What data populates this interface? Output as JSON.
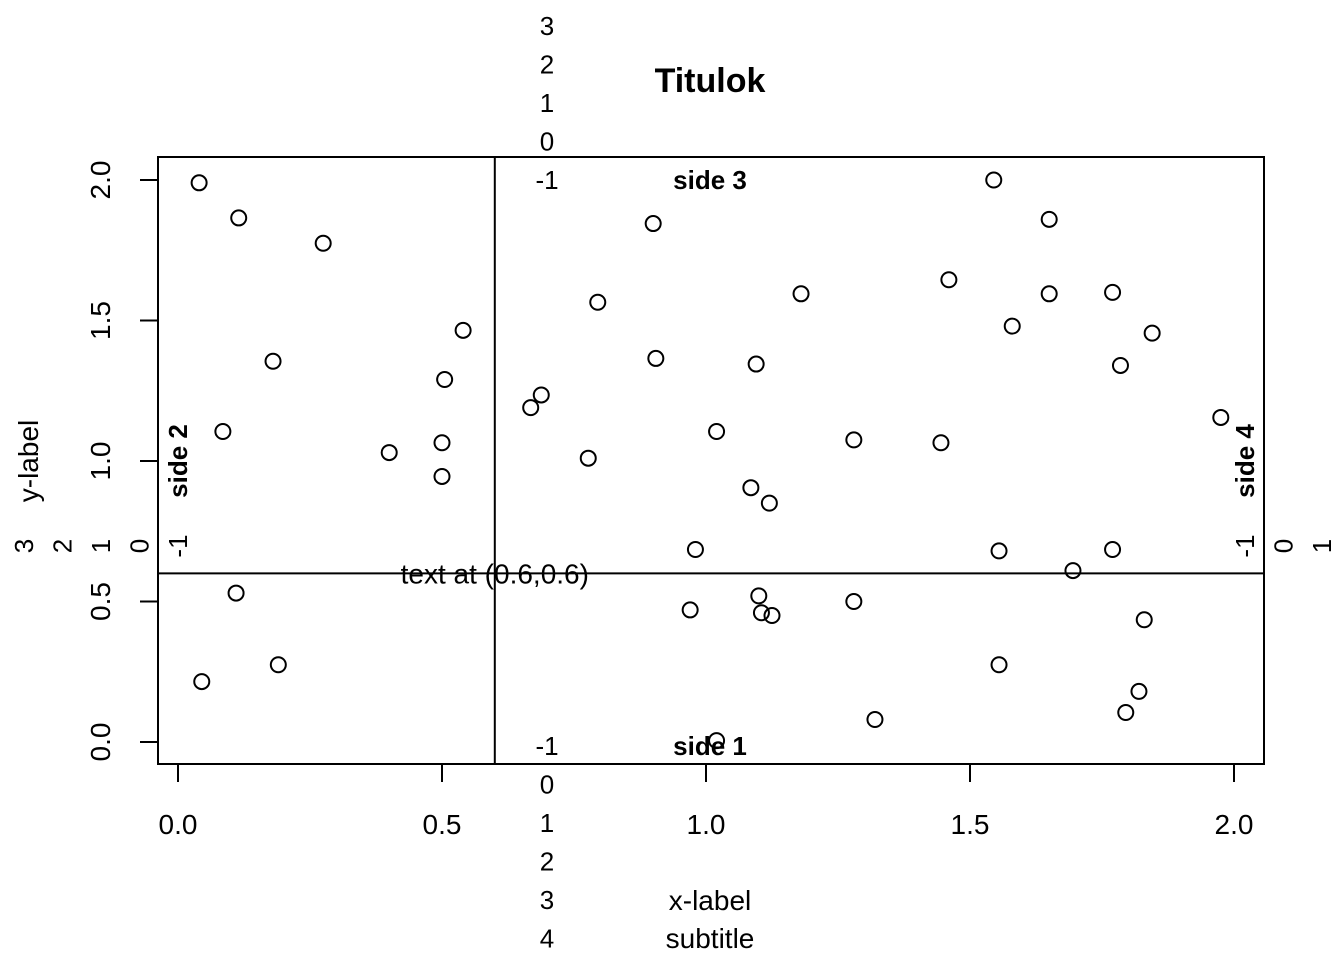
{
  "chart_data": {
    "type": "scatter",
    "title": "Titulok",
    "subtitle": "subtitle",
    "xlabel": "x-label",
    "ylabel": "y-label",
    "xlim": [
      -0.04,
      2.06
    ],
    "ylim": [
      -0.07,
      2.08
    ],
    "x_ticks": [
      0.0,
      0.5,
      1.0,
      1.5,
      2.0
    ],
    "x_tick_labels": [
      "0.0",
      "0.5",
      "1.0",
      "1.5",
      "2.0"
    ],
    "y_ticks": [
      0.0,
      0.5,
      1.0,
      1.5,
      2.0
    ],
    "y_tick_labels": [
      "0.0",
      "0.5",
      "1.0",
      "1.5",
      "2.0"
    ],
    "grid": false,
    "reference_lines": {
      "vertical_x": 0.6,
      "horizontal_y": 0.6
    },
    "annotation": {
      "text": "text at (0.6,0.6)",
      "x": 0.6,
      "y": 0.6
    },
    "side_labels": {
      "side1": "side 1",
      "side2": "side 2",
      "side3": "side 3",
      "side4": "side 4"
    },
    "margin_line_labels": {
      "bottom": [
        "-1",
        "0",
        "1",
        "2",
        "3",
        "4"
      ],
      "top": [
        "-1",
        "0",
        "1",
        "2",
        "3"
      ],
      "left": [
        "-1",
        "0",
        "1",
        "2",
        "3"
      ],
      "right": [
        "-1",
        "0",
        "1"
      ]
    },
    "points": [
      {
        "x": 0.04,
        "y": 1.99
      },
      {
        "x": 0.115,
        "y": 1.865
      },
      {
        "x": 0.275,
        "y": 1.775
      },
      {
        "x": 0.18,
        "y": 1.355
      },
      {
        "x": 0.085,
        "y": 1.105
      },
      {
        "x": 0.4,
        "y": 1.03
      },
      {
        "x": 0.505,
        "y": 1.29
      },
      {
        "x": 0.54,
        "y": 1.465
      },
      {
        "x": 0.5,
        "y": 1.065
      },
      {
        "x": 0.5,
        "y": 0.945
      },
      {
        "x": 0.11,
        "y": 0.53
      },
      {
        "x": 0.19,
        "y": 0.275
      },
      {
        "x": 0.045,
        "y": 0.215
      },
      {
        "x": 0.668,
        "y": 1.19
      },
      {
        "x": 0.688,
        "y": 1.235
      },
      {
        "x": 0.777,
        "y": 1.01
      },
      {
        "x": 0.795,
        "y": 1.565
      },
      {
        "x": 0.9,
        "y": 1.845
      },
      {
        "x": 0.905,
        "y": 1.365
      },
      {
        "x": 0.98,
        "y": 0.685
      },
      {
        "x": 0.97,
        "y": 0.47
      },
      {
        "x": 1.02,
        "y": 1.105
      },
      {
        "x": 1.02,
        "y": 0.005
      },
      {
        "x": 1.085,
        "y": 0.905
      },
      {
        "x": 1.095,
        "y": 1.345
      },
      {
        "x": 1.1,
        "y": 0.52
      },
      {
        "x": 1.105,
        "y": 0.46
      },
      {
        "x": 1.12,
        "y": 0.85
      },
      {
        "x": 1.125,
        "y": 0.45
      },
      {
        "x": 1.18,
        "y": 1.595
      },
      {
        "x": 1.28,
        "y": 1.075
      },
      {
        "x": 1.28,
        "y": 0.5
      },
      {
        "x": 1.32,
        "y": 0.08
      },
      {
        "x": 1.445,
        "y": 1.065
      },
      {
        "x": 1.46,
        "y": 1.645
      },
      {
        "x": 1.545,
        "y": 2.0
      },
      {
        "x": 1.555,
        "y": 0.68
      },
      {
        "x": 1.555,
        "y": 0.275
      },
      {
        "x": 1.58,
        "y": 1.48
      },
      {
        "x": 1.65,
        "y": 1.86
      },
      {
        "x": 1.65,
        "y": 1.595
      },
      {
        "x": 1.695,
        "y": 0.61
      },
      {
        "x": 1.77,
        "y": 1.6
      },
      {
        "x": 1.77,
        "y": 0.685
      },
      {
        "x": 1.785,
        "y": 1.34
      },
      {
        "x": 1.795,
        "y": 0.105
      },
      {
        "x": 1.82,
        "y": 0.18
      },
      {
        "x": 1.83,
        "y": 0.435
      },
      {
        "x": 1.845,
        "y": 1.455
      },
      {
        "x": 1.975,
        "y": 1.155
      }
    ]
  }
}
